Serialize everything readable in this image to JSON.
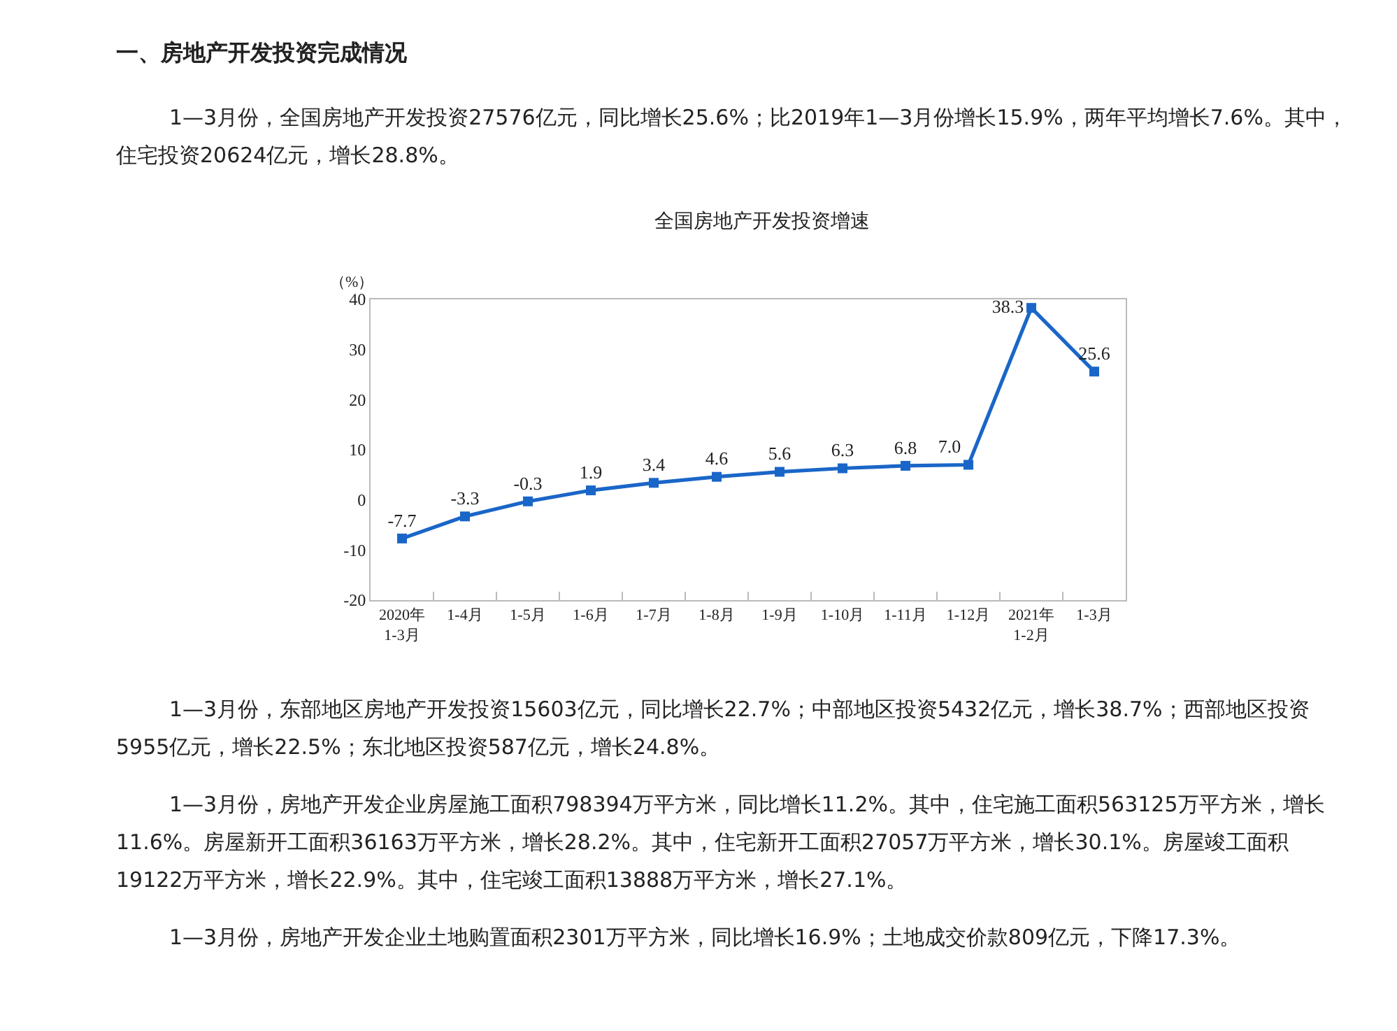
{
  "chart_data": {
    "type": "line",
    "title": "全国房地产开发投资增速",
    "ylabel": "（%）",
    "categories": [
      "2020年\n1-3月",
      "1-4月",
      "1-5月",
      "1-6月",
      "1-7月",
      "1-8月",
      "1-9月",
      "1-10月",
      "1-11月",
      "1-12月",
      "2021年\n1-2月",
      "1-3月"
    ],
    "series": [
      {
        "color": "#1a66c8",
        "values": [
          -7.7,
          -3.3,
          -0.3,
          1.9,
          3.4,
          4.6,
          5.6,
          6.3,
          6.8,
          7.0,
          38.3,
          25.6
        ],
        "value_labels": [
          "-7.7",
          "-3.3",
          "-0.3",
          "1.9",
          "3.4",
          "4.6",
          "5.6",
          "6.3",
          "6.8",
          "7.0",
          "38.3",
          "25.6"
        ]
      }
    ],
    "ylim": [
      -20,
      40
    ],
    "yticks": [
      -20,
      -10,
      0,
      10,
      20,
      30,
      40
    ],
    "grid": false,
    "legend": false,
    "marker": "square",
    "line_style": "solid",
    "annotations": [
      "一、房地产开发投资完成情况",
      "1—3月份，全国房地产开发投资27576亿元，同比增长25.6%；比2019年1—3月份增长15.9%，两年平均增长7.6%。其中，住宅投资20624亿元，增长28.8%。",
      "1—3月份，东部地区房地产开发投资15603亿元，同比增长22.7%；中部地区投资5432亿元，增长38.7%；西部地区投资5955亿元，增长22.5%；东北地区投资587亿元，增长24.8%。",
      "1—3月份，房地产开发企业房屋施工面积798394万平方米，同比增长11.2%。其中，住宅施工面积563125万平方米，增长11.6%。房屋新开工面积36163万平方米，增长28.2%。其中，住宅新开工面积27057万平方米，增长30.1%。房屋竣工面积19122万平方米，增长22.9%。其中，住宅竣工面积13888万平方米，增长27.1%。",
      "1—3月份，房地产开发企业土地购置面积2301万平方米，同比增长16.9%；土地成交价款809亿元，下降17.3%。"
    ]
  }
}
